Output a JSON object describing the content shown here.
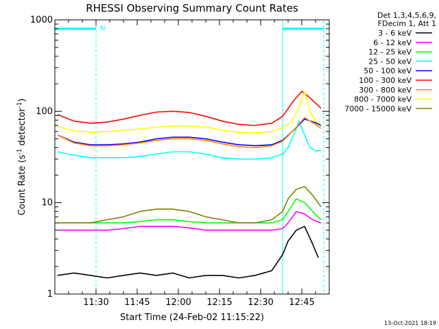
{
  "chart_data": {
    "type": "line",
    "title": "RHESSI Observing Summary Count Rates",
    "xlabel": "Start Time (24-Feb-02 11:15:22)",
    "ylabel_main": "Count Rate (s",
    "ylabel_sup1": "-1",
    "ylabel_mid": " detector",
    "ylabel_sup2": "-1",
    "ylabel_end": ")",
    "y_scale": "log",
    "ylim": [
      1,
      1000
    ],
    "xlim": [
      "11:15",
      "12:55"
    ],
    "x_ticks": [
      "11:30",
      "11:45",
      "12:00",
      "12:15",
      "12:30",
      "12:45"
    ],
    "y_ticks": [
      "1",
      "10",
      "100",
      "1000"
    ],
    "legend_header": [
      "Det 1,3,4,5,6,9,",
      "FDecim 1, Att 1"
    ],
    "legend_position": "top-right",
    "footer_date": "13-Oct-2021 18:19",
    "night_marker": "N",
    "eclipse_bars": [
      {
        "start": "11:15",
        "end": "11:30"
      },
      {
        "start": "12:38",
        "end": "12:53"
      }
    ],
    "series": [
      {
        "name": "3 - 6 keV",
        "color": "#000000",
        "x": [
          "11:16",
          "11:22",
          "11:28",
          "11:34",
          "11:40",
          "11:46",
          "11:52",
          "11:58",
          "12:04",
          "12:10",
          "12:16",
          "12:22",
          "12:28",
          "12:34",
          "12:38",
          "12:40",
          "12:43",
          "12:46",
          "12:49",
          "12:51"
        ],
        "y": [
          1.6,
          1.7,
          1.6,
          1.5,
          1.6,
          1.7,
          1.6,
          1.7,
          1.5,
          1.6,
          1.6,
          1.5,
          1.6,
          1.8,
          2.7,
          3.8,
          5,
          5.5,
          3.5,
          2.5
        ]
      },
      {
        "name": "6 - 12 keV",
        "color": "#ff00ff",
        "x": [
          "11:16",
          "11:22",
          "11:28",
          "11:34",
          "11:40",
          "11:46",
          "11:52",
          "11:58",
          "12:04",
          "12:10",
          "12:16",
          "12:22",
          "12:28",
          "12:34",
          "12:38",
          "12:40",
          "12:43",
          "12:46",
          "12:49",
          "12:52"
        ],
        "y": [
          5,
          5,
          5,
          5,
          5.2,
          5.5,
          5.5,
          5.5,
          5.3,
          5,
          5,
          5,
          5,
          5,
          5.2,
          6,
          8,
          7.5,
          6.5,
          6
        ]
      },
      {
        "name": "12 - 25 keV",
        "color": "#00ff00",
        "x": [
          "11:16",
          "11:22",
          "11:28",
          "11:34",
          "11:40",
          "11:46",
          "11:52",
          "11:58",
          "12:04",
          "12:10",
          "12:16",
          "12:22",
          "12:28",
          "12:34",
          "12:38",
          "12:40",
          "12:43",
          "12:46",
          "12:49",
          "12:52"
        ],
        "y": [
          6,
          6,
          6,
          6,
          6,
          6.2,
          6.5,
          6.5,
          6.2,
          6,
          6,
          6,
          6,
          6,
          6.5,
          8,
          11,
          10,
          8,
          6.5
        ]
      },
      {
        "name": "25 - 50 keV",
        "color": "#00ffff",
        "x": [
          "11:16",
          "11:22",
          "11:28",
          "11:34",
          "11:40",
          "11:46",
          "11:52",
          "11:58",
          "12:04",
          "12:10",
          "12:16",
          "12:22",
          "12:28",
          "12:34",
          "12:38",
          "12:40",
          "12:42",
          "12:44",
          "12:46",
          "12:48",
          "12:50",
          "12:52"
        ],
        "y": [
          36,
          33,
          31,
          31,
          31,
          32,
          34,
          36,
          36,
          34,
          31,
          30,
          30,
          31,
          34,
          40,
          55,
          78,
          55,
          40,
          37,
          37
        ]
      },
      {
        "name": "50 - 100 keV",
        "color": "#0000ff",
        "x": [
          "11:16",
          "11:22",
          "11:28",
          "11:34",
          "11:40",
          "11:46",
          "11:52",
          "11:58",
          "12:04",
          "12:10",
          "12:16",
          "12:22",
          "12:28",
          "12:34",
          "12:38",
          "12:42",
          "12:46",
          "12:50",
          "12:52"
        ],
        "y": [
          55,
          46,
          43,
          43,
          44,
          46,
          50,
          52,
          52,
          50,
          46,
          43,
          42,
          43,
          48,
          62,
          82,
          75,
          70
        ]
      },
      {
        "name": "100 - 300 keV",
        "color": "#ff0000",
        "x": [
          "11:16",
          "11:22",
          "11:28",
          "11:34",
          "11:40",
          "11:46",
          "11:52",
          "11:58",
          "12:04",
          "12:10",
          "12:16",
          "12:22",
          "12:28",
          "12:34",
          "12:38",
          "12:42",
          "12:45",
          "12:48",
          "12:52"
        ],
        "y": [
          92,
          78,
          74,
          76,
          82,
          90,
          98,
          100,
          97,
          88,
          78,
          72,
          70,
          74,
          88,
          130,
          165,
          140,
          108
        ]
      },
      {
        "name": "300 - 800 keV",
        "color": "#ff8000",
        "x": [
          "11:16",
          "11:22",
          "11:28",
          "11:34",
          "11:40",
          "11:46",
          "11:52",
          "11:58",
          "12:04",
          "12:10",
          "12:16",
          "12:22",
          "12:28",
          "12:34",
          "12:38",
          "12:42",
          "12:46",
          "12:50",
          "12:52"
        ],
        "y": [
          55,
          45,
          42,
          42,
          43,
          45,
          48,
          50,
          50,
          48,
          44,
          41,
          40,
          42,
          47,
          62,
          85,
          72,
          65
        ]
      },
      {
        "name": "800 - 7000 keV",
        "color": "#ffff00",
        "x": [
          "11:16",
          "11:22",
          "11:28",
          "11:34",
          "11:40",
          "11:46",
          "11:52",
          "11:58",
          "12:04",
          "12:10",
          "12:16",
          "12:22",
          "12:28",
          "12:34",
          "12:38",
          "12:41",
          "12:44",
          "12:46",
          "12:48",
          "12:50",
          "12:52"
        ],
        "y": [
          68,
          61,
          59,
          60,
          62,
          64,
          67,
          69,
          69,
          67,
          62,
          59,
          58,
          60,
          66,
          75,
          110,
          165,
          100,
          78,
          72
        ]
      },
      {
        "name": "7000 - 15000 keV",
        "color": "#808000",
        "x": [
          "11:16",
          "11:22",
          "11:28",
          "11:34",
          "11:40",
          "11:46",
          "11:52",
          "11:58",
          "12:04",
          "12:10",
          "12:16",
          "12:22",
          "12:28",
          "12:34",
          "12:38",
          "12:40",
          "12:43",
          "12:46",
          "12:49",
          "12:52"
        ],
        "y": [
          6,
          6,
          6,
          6.5,
          7,
          8,
          8.5,
          8.5,
          8,
          7,
          6.5,
          6,
          6,
          6.5,
          8,
          11,
          14,
          15,
          12,
          9
        ]
      }
    ]
  }
}
